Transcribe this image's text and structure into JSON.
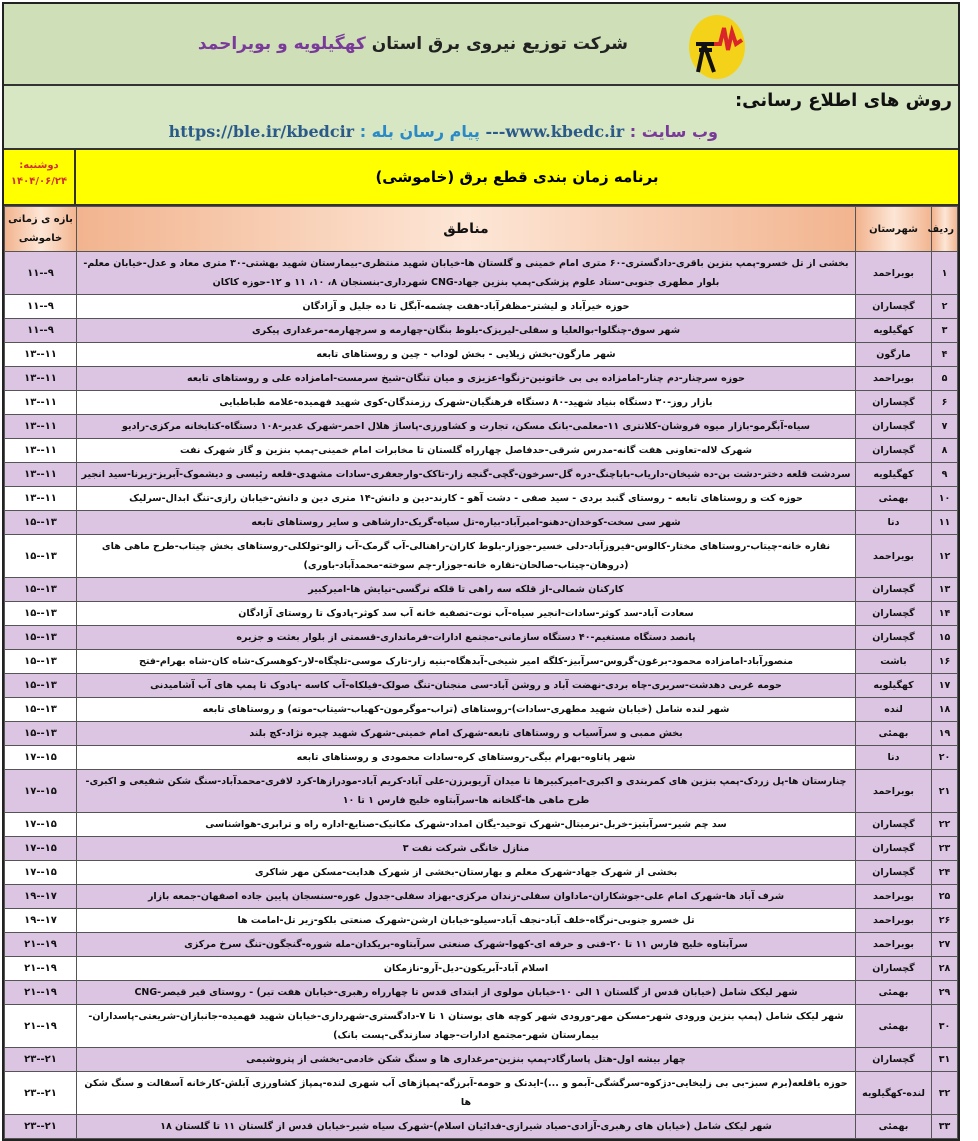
{
  "header": {
    "company_prefix": "شرکت توزیع نیروی برق استان",
    "company_province": "کهگیلویه و بویراحمد",
    "methods_title": "روش های اطلاع رسانی:",
    "website_label": "وب سایت :",
    "website": "www.kbedc.ir",
    "separator": "---",
    "messenger_label": "پیام رسان بله :",
    "messenger": "https://ble.ir/kbedcir",
    "schedule_title": "برنامه زمان بندی قطع برق (خاموشی)",
    "day": "دوشنبه:",
    "date": "۱۴۰۴/۰۶/۲۴"
  },
  "colors": {
    "logo_yellow": "#f5d21a",
    "logo_red": "#d8262a",
    "row_alt": "#dcc5e2",
    "title_bg": "#ffff00",
    "header_bg": "#cfe0b8"
  },
  "table": {
    "columns": {
      "num": "ردیف",
      "city": "شهرستان",
      "areas": "مناطق",
      "time": "بازه ی زمانی خاموشی"
    },
    "rows": [
      {
        "n": "۱",
        "city": "بویراحمد",
        "areas": "بخشی از تل خسرو-پمپ بنزین باقری-دادگستری-۶۰ متری امام خمینی و گلستان ها-خیابان شهید منتظری-بیمارستان شهید بهشتی-۳۰ متری معاد و عدل-خیابان معلم-بلوار مطهری جنوبی-ستاد علوم پزشکی-پمپ بنزین جهاد-CNG شهرداری-بنسنجان ۸، ۱۰، ۱۱ و ۱۲-حوزه کاکان",
        "time": "۹--۱۱"
      },
      {
        "n": "۲",
        "city": "گچساران",
        "areas": "حوزه خیرآباد و لیشتر-مظفرآباد-هفت چشمه-آبگل تا ده جلیل و آزادگان",
        "time": "۹--۱۱"
      },
      {
        "n": "۳",
        "city": "کهگیلویه",
        "areas": "شهر سوق-چنگلوا-بوالعلیا و سفلی-لیریزک-بلوط بنگان-چهارمه و سرچهارمه-مرغداری پیکری",
        "time": "۹--۱۱"
      },
      {
        "n": "۴",
        "city": "مارگون",
        "areas": "شهر مارگون-بخش زیلایی - بخش لوداب - چین و روستاهای تابعه",
        "time": "۱۱--۱۳"
      },
      {
        "n": "۵",
        "city": "بویراحمد",
        "areas": "حوزه سرچنار-دم چنار-امامزاده بی بی خاتونین-زنگوا-عزیزی و میان تنگان-شیخ سرمست-امامزاده علی و روستاهای تابعه",
        "time": "۱۱--۱۳"
      },
      {
        "n": "۶",
        "city": "گچساران",
        "areas": "بازار روز-۳۰ دستگاه بنیاد شهید-۸۰ دستگاه فرهنگیان-شهرک رزمندگان-کوی شهید فهمیده-علامه طباطبایی",
        "time": "۱۱--۱۳"
      },
      {
        "n": "۷",
        "city": "گچساران",
        "areas": "سیاه-آبگرمو-بازار میوه فروشان-کلانتری ۱۱-معلمی-بانک مسکن، تجارت و کشاورزی-پاساژ هلال احمر-شهرک غدیر-۱۰۸ دستگاه-کتابخانه مرکزی-رادیو",
        "time": "۱۱--۱۳"
      },
      {
        "n": "۸",
        "city": "گچساران",
        "areas": "شهرک لاله-تعاونی هفت گانه-مدرس شرقی-حدفاصل چهارراه گلستان تا مخابرات امام خمینی-پمپ بنزین و گاز شهرک نفت",
        "time": "۱۱--۱۳"
      },
      {
        "n": "۹",
        "city": "کهگیلویه",
        "areas": "سردشت قلعه دختر-دشت بن-ده شیخان-داریاب-باباچنگ-دره گل-سرخون-گچی-گنجه زار-تاکک-وارجعفری-سادات مشهدی-قلعه رئیسی و دیشموک-آبریز-زیرنا-سید انجیر",
        "time": "۱۱--۱۳"
      },
      {
        "n": "۱۰",
        "city": "بهمئی",
        "areas": "حوزه کت و روستاهای تابعه - روستای گنبد بردی - سید صفی - دشت آهو - کارند-دین و دانش-۱۴ متری دین و دانش-خیابان رازی-تنگ ابدال-سرلیک",
        "time": "۱۱--۱۳"
      },
      {
        "n": "۱۱",
        "city": "دنا",
        "areas": "شهر سی سخت-کوخدان-دهنو-امیرآباد-بیاره-تل سیاه-گریک-دارشاهی و سایر روستاهای تابعه",
        "time": "۱۳--۱۵"
      },
      {
        "n": "۱۲",
        "city": "بویراحمد",
        "areas": "نقاره خانه-چیتاب-روستاهای مختار-کالوس-فیروزآباد-دلی خسیر-جوزار-بلوط کاران-راهنالی-آب گرمک-آب زالو-تولکلی-روستاهای بخش چیتاب-طرح ماهی های (دروهان-چیتاب-صالحان-نقاره خانه-جوزار-چم سوخته-محمدآباد-باوری)",
        "time": "۱۳--۱۵"
      },
      {
        "n": "۱۳",
        "city": "گچساران",
        "areas": "کارکنان شمالی-از قلکه سه راهی تا قلکه نرگسی-نیایش ها-امیرکبیر",
        "time": "۱۳--۱۵"
      },
      {
        "n": "۱۴",
        "city": "گچساران",
        "areas": "سعادت آباد-سد کوثر-سادات-انجیر سیاه-آب نوت-تصفیه خانه آب سد کوثر-پادوک تا روستای آزادگان",
        "time": "۱۳--۱۵"
      },
      {
        "n": "۱۵",
        "city": "گچساران",
        "areas": "پانصد دستگاه مستغیم-۴۰ دستگاه سازمانی-مجتمع ادارات-فرمانداری-قسمتی از بلوار بعثت و جزیره",
        "time": "۱۳--۱۵"
      },
      {
        "n": "۱۶",
        "city": "باشت",
        "areas": "منصورآباد-امامزاده محمود-برغون-گروس-سرآبیز-کلگه امیر شیخی-آبدهگاه-بنیه زار-تارک موسی-تلچگاه-لار-کوهسرک-شاه کان-شاه بهرام-فتح",
        "time": "۱۳--۱۵"
      },
      {
        "n": "۱۷",
        "city": "کهگیلویه",
        "areas": "حومه غربی دهدشت-سربری-چاه بردی-نهضت آباد و روشن آباد-سی منجنان-تنگ صولک-فیلکاه-آب کاسه -پادوک تا پمپ های آب آشامیدنی",
        "time": "۱۳--۱۵"
      },
      {
        "n": "۱۸",
        "city": "لنده",
        "areas": "شهر لنده شامل (خیابان شهید مطهری-سادات)-روستاهای (تراب-موگرمون-کهباب-شیتاب-موته) و روستاهای تابعه",
        "time": "۱۳--۱۵"
      },
      {
        "n": "۱۹",
        "city": "بهمئی",
        "areas": "بخش ممبی و سرآسیاب و روستاهای تابعه-شهرک امام خمینی-شهرک شهید چیره نژاد-کچ بلند",
        "time": "۱۳--۱۵"
      },
      {
        "n": "۲۰",
        "city": "دنا",
        "areas": "شهر پاتاوه-بهرام بیگی-روستاهای کره-سادات محمودی و روستاهای تابعه",
        "time": "۱۵--۱۷"
      },
      {
        "n": "۲۱",
        "city": "بویراحمد",
        "areas": "چنارستان ها-پل زردک-پمپ بنزین های کمربندی و اکبری-امیرکبیرها تا میدان آریوبرزن-علی آباد-کریم آباد-مودرازها-کرد لافری-محمدآباد-سنگ شکن شفیعی و اکبری-طرح ماهی ها-گلخانه ها-سرآبتاوه خلیج فارس ۱ تا ۱۰",
        "time": "۱۵--۱۷"
      },
      {
        "n": "۲۲",
        "city": "گچساران",
        "areas": "سد چم شیر-سرآبتیز-خربل-نرمیتال-شهرک توحید-یگان امداد-شهرک مکانیک-صنایع-اداره راه و ترابری-هواشناسی",
        "time": "۱۵--۱۷"
      },
      {
        "n": "۲۳",
        "city": "گچساران",
        "areas": "منازل خانگی شرکت نفت ۳",
        "time": "۱۵--۱۷"
      },
      {
        "n": "۲۴",
        "city": "گچساران",
        "areas": "بخشی از شهرک جهاد-شهرک معلم و بهارستان-بخشی از شهرک هدایت-مسکن مهر شاکری",
        "time": "۱۵--۱۷"
      },
      {
        "n": "۲۵",
        "city": "بویراحمد",
        "areas": "شرف آباد ها-شهرک امام علی-جوشکاران-ماداوان سفلی-زندان مرکزی-بهزاد سفلی-جدول غوره-سنسجان پایین جاده اصفهان-جمعه بازار",
        "time": "۱۷--۱۹"
      },
      {
        "n": "۲۶",
        "city": "بویراحمد",
        "areas": "تل خسرو جنوبی-نرگاه-خلف آباد-نجف آباد-سیلو-خیابان ارشن-شهرک صنعتی بلکو-زیر تل-امامت ها",
        "time": "۱۷--۱۹"
      },
      {
        "n": "۲۷",
        "city": "بویراحمد",
        "areas": "سرآبتاوه خلیج فارس ۱۱ تا ۲۰-فنی و حرفه ای-کهوا-شهرک صنعتی سرآبتاوه-بریکدان-مله شوره-گنجگون-تنگ سرخ مرکزی",
        "time": "۱۹--۲۱"
      },
      {
        "n": "۲۸",
        "city": "گچساران",
        "areas": "اسلام آباد-آبریکون-دیل-آرو-نازمکان",
        "time": "۱۹--۲۱"
      },
      {
        "n": "۲۹",
        "city": "بهمئی",
        "areas": "شهر لیکک شامل (خیابان قدس از گلستان ۱ الی ۱۰-خیابان مولوی از ابتدای قدس تا چهارراه رهبری-خیابان هفت تیر) - روستای قیر قیصر-CNG",
        "time": "۱۹--۲۱"
      },
      {
        "n": "۳۰",
        "city": "بهمئی",
        "areas": "شهر لیکک شامل (پمپ بنزین ورودی شهر-مسکن مهر-ورودی شهر کوچه های بوستان ۱ تا ۷-دادگستری-شهرداری-خیابان شهید فهمیده-جانبازان-شریعتی-پاسداران-بیمارستان شهر-مجتمع ادارات-جهاد سازندگی-پست بانک)",
        "time": "۱۹--۲۱"
      },
      {
        "n": "۳۱",
        "city": "گچساران",
        "areas": "چهار بیشه اول-هتل پاسارگاد-پمپ بنزین-مرغداری ها و سنگ شکن خادمی-بخشی از پتروشیمی",
        "time": "۲۱--۲۳"
      },
      {
        "n": "۳۲",
        "city": "لنده-کهگیلویه",
        "areas": "حوزه یاقلعه(برم سبز-بی بی زلیخایی-دژکوه-سرگشگی-آبمو و ...)-ایدنک و حومه-آبرزگه-پمپاژهای آب شهری لنده-پمپاژ کشاورزی آبلش-کارخانه آسفالت و سنگ شکن ها",
        "time": "۲۱--۲۳"
      },
      {
        "n": "۳۳",
        "city": "بهمئی",
        "areas": "شهر لیکک شامل (خیابان های رهبری-آزادی-صیاد شیرازی-فدائیان اسلام)-شهرک سیاه شیر-خیابان قدس از گلستان ۱۱ تا گلستان ۱۸",
        "time": "۲۱--۲۳"
      }
    ]
  }
}
